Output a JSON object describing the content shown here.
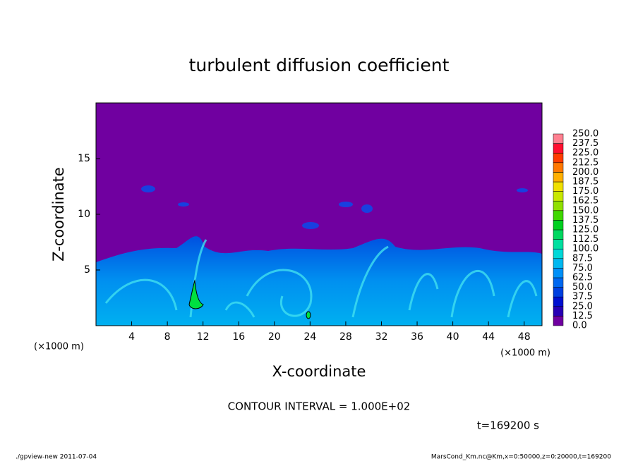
{
  "chart_data": {
    "type": "contour",
    "title": "turbulent diffusion coefficient",
    "xlabel": "X-coordinate",
    "ylabel": "Z-coordinate",
    "x_unit": "(×1000 m)",
    "y_unit": "(×1000 m)",
    "xlim": [
      0,
      50
    ],
    "ylim": [
      0,
      20
    ],
    "xticks": [
      4,
      8,
      12,
      16,
      20,
      24,
      28,
      32,
      36,
      40,
      44,
      48
    ],
    "yticks": [
      5,
      10,
      15
    ],
    "levels": [
      {
        "value": 0,
        "label": "0.0"
      },
      {
        "value": 12.5,
        "label": "12.5"
      },
      {
        "value": 25,
        "label": "25.0"
      },
      {
        "value": 37.5,
        "label": "37.5"
      },
      {
        "value": 50,
        "label": "50.0"
      },
      {
        "value": 62.5,
        "label": "62.5"
      },
      {
        "value": 75,
        "label": "75.0"
      },
      {
        "value": 87.5,
        "label": "87.5"
      },
      {
        "value": 100,
        "label": "100.0"
      },
      {
        "value": 112.5,
        "label": "112.5"
      },
      {
        "value": 125,
        "label": "125.0"
      },
      {
        "value": 137.5,
        "label": "137.5"
      },
      {
        "value": 150,
        "label": "150.0"
      },
      {
        "value": 162.5,
        "label": "162.5"
      },
      {
        "value": 175,
        "label": "175.0"
      },
      {
        "value": 187.5,
        "label": "187.5"
      },
      {
        "value": 200,
        "label": "200.0"
      },
      {
        "value": 212.5,
        "label": "212.5"
      },
      {
        "value": 225,
        "label": "225.0"
      },
      {
        "value": 237.5,
        "label": "237.5"
      },
      {
        "value": 250,
        "label": "250.0"
      }
    ],
    "colors": [
      "#7000a0",
      "#2800b4",
      "#0010d0",
      "#0040e0",
      "#0068f0",
      "#0090f8",
      "#00b8f0",
      "#00d8d8",
      "#00e0a0",
      "#00d860",
      "#00d020",
      "#40d800",
      "#90e000",
      "#c8e800",
      "#f0e000",
      "#ffb000",
      "#ff7800",
      "#ff3c00",
      "#ff1030",
      "#ff8090"
    ],
    "contour_interval": "CONTOUR INTERVAL = 1.000E+02",
    "time": "t=169200 s",
    "footer_left": "./gpview-new   2011-07-04",
    "footer_right": "MarsCond_Km.nc@Km,x=0:50000,z=0:20000,t=169200"
  }
}
